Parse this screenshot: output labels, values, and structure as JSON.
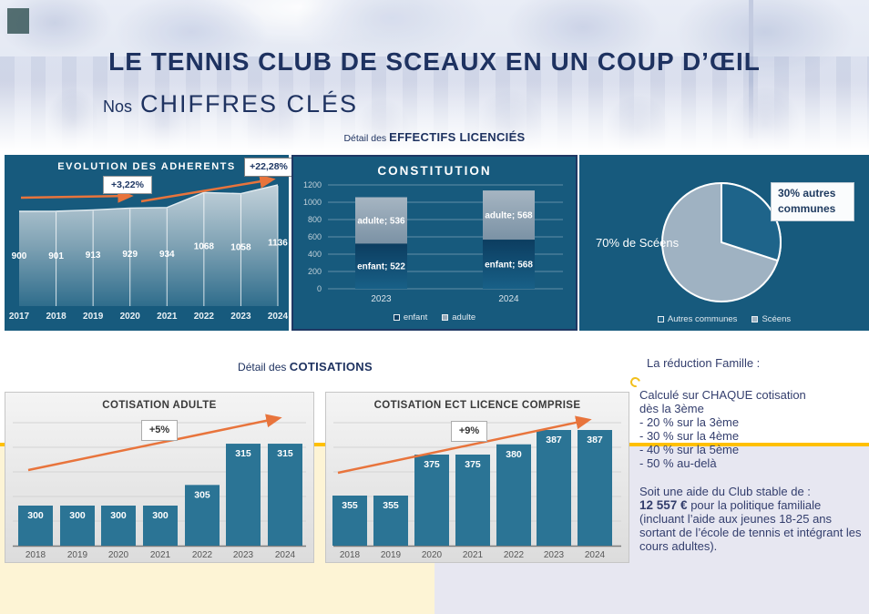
{
  "header": {
    "title": "LE TENNIS CLUB DE SCEAUX EN UN COUP D’ŒIL",
    "subtitle_prefix": "Nos",
    "subtitle": "CHIFFRES CLÉS"
  },
  "sections": {
    "effectifs_prefix": "Détail des",
    "effectifs_label": "EFFECTIFS LICENCIÉS",
    "cotisations_prefix": "Détail des",
    "cotisations_label": "COTISATIONS"
  },
  "chart_data": [
    {
      "id": "adherents",
      "type": "area",
      "title": "EVOLUTION DES ADHERENTS",
      "categories": [
        "2017",
        "2018",
        "2019",
        "2020",
        "2021",
        "2022",
        "2023",
        "2024"
      ],
      "values": [
        900,
        901,
        913,
        929,
        934,
        1068,
        1058,
        1136
      ],
      "annotations": [
        {
          "label": "+3,22%",
          "span": "2017-2020"
        },
        {
          "label": "+22,28%",
          "span": "2020-2024"
        }
      ],
      "grid": true,
      "legend_position": "none"
    },
    {
      "id": "constitution",
      "type": "bar",
      "subtype": "stacked",
      "title": "CONSTITUTION",
      "categories": [
        "2023",
        "2024"
      ],
      "series": [
        {
          "name": "enfant",
          "values": [
            522,
            568
          ]
        },
        {
          "name": "adulte",
          "values": [
            536,
            568
          ]
        }
      ],
      "yticks": [
        0,
        200,
        400,
        600,
        800,
        1000,
        1200
      ],
      "ylim": [
        0,
        1200
      ],
      "legend": [
        "enfant",
        "adulte"
      ],
      "legend_position": "bottom",
      "label_format": "name; value"
    },
    {
      "id": "origine-geographique",
      "type": "pie",
      "slices": [
        {
          "label": "Autres communes",
          "value": 30
        },
        {
          "label": "Scéens",
          "value": 70
        }
      ],
      "callout_left": "70% de Scéens",
      "callout_box": "30% autres communes",
      "legend": [
        "Autres communes",
        "Scéens"
      ],
      "legend_position": "bottom"
    },
    {
      "id": "cotisation-adulte",
      "type": "bar",
      "title": "COTISATION ADULTE",
      "categories": [
        "2018",
        "2019",
        "2020",
        "2021",
        "2022",
        "2023",
        "2024"
      ],
      "values": [
        300,
        300,
        300,
        300,
        305,
        315,
        315
      ],
      "annotation": "+5%",
      "grid": true
    },
    {
      "id": "cotisation-ect",
      "type": "bar",
      "title": "COTISATION ECT LICENCE COMPRISE",
      "categories": [
        "2018",
        "2019",
        "2020",
        "2021",
        "2022",
        "2023",
        "2024"
      ],
      "values": [
        355,
        355,
        375,
        375,
        380,
        387,
        387
      ],
      "annotation": "+9%",
      "grid": true
    }
  ],
  "reduction": {
    "title": "La réduction Famille :",
    "lines": [
      "Calculé sur CHAQUE cotisation",
      "dès la 3ème",
      "- 20 % sur la 3ème",
      "- 30 % sur la 4ème",
      "- 40 % sur la 5ème",
      "- 50 % au-delà"
    ],
    "aid_intro": "Soit une aide du Club stable de :",
    "aid_amount": "12 557 €",
    "aid_text": "pour la politique familiale (incluant l’aide aux jeunes 18-25 ans sortant de l’école de tennis et intégrant les cours adultes)."
  },
  "colors": {
    "navy": "#1e3260",
    "panel_teal": "#175a7d",
    "accent_orange": "#e8743c",
    "bar_teal": "#2b7495",
    "gold": "#ffc000",
    "pale_yellow": "#fdf4d5",
    "lavender": "#e7e7f1",
    "pie_light": "#9fb2c2",
    "pie_dark": "#1e648a",
    "stack_enfant_dark": "#0c3d60",
    "stack_adulte_gray": "#a6b5c2"
  }
}
